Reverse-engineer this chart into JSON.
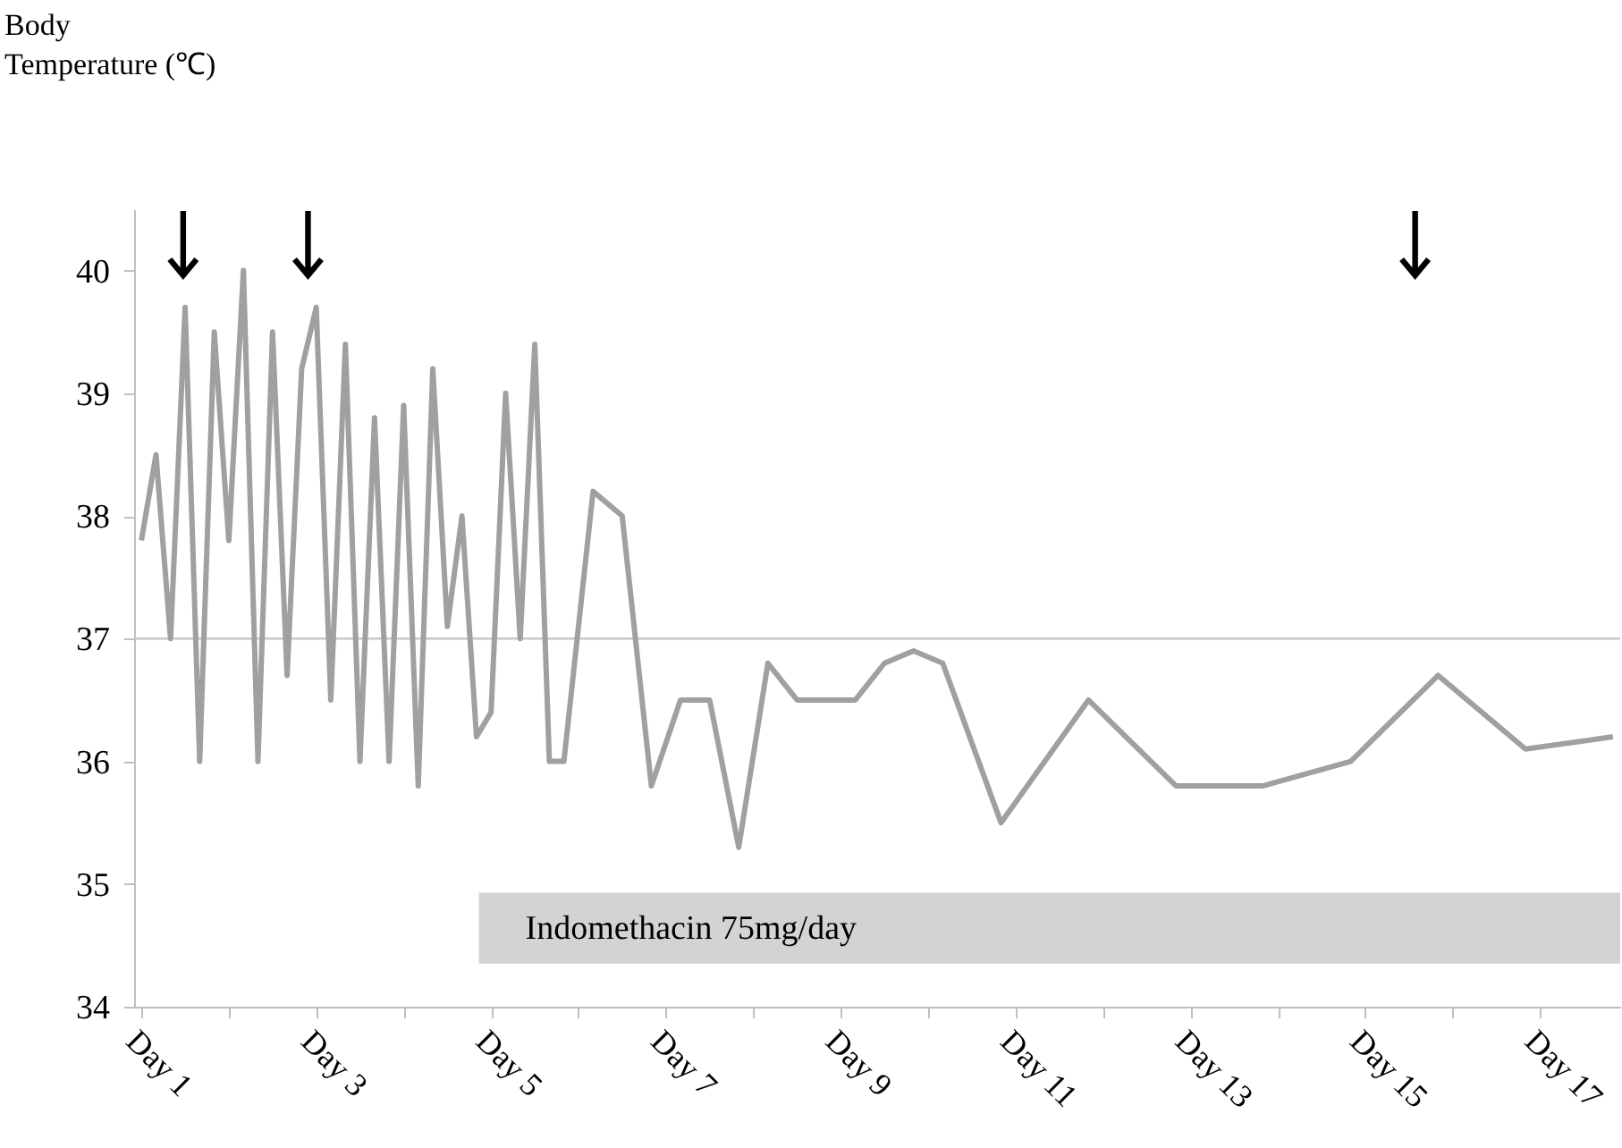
{
  "chart_data": {
    "type": "line",
    "ylabel": "Body Temperature (℃)",
    "categories": [
      "Day 1",
      null,
      null,
      null,
      null,
      null,
      null,
      null,
      null,
      null,
      null,
      null,
      "Day 3",
      null,
      null,
      null,
      null,
      null,
      null,
      null,
      null,
      null,
      null,
      null,
      "Day 5",
      null,
      null,
      null,
      null,
      null,
      null,
      null,
      null,
      null,
      null,
      null,
      "Day 7",
      null,
      null,
      null,
      null,
      null,
      null,
      null,
      null,
      null,
      null,
      null,
      "Day 9",
      null,
      null,
      null,
      null,
      null,
      null,
      null,
      null,
      null,
      null,
      null,
      "Day 11",
      null,
      null,
      null,
      null,
      null,
      null,
      null,
      null,
      null,
      null,
      null,
      "Day 13",
      null,
      null,
      null,
      null,
      null,
      null,
      null,
      null,
      null,
      null,
      null,
      "Day 15",
      null,
      null,
      null,
      null,
      null,
      null,
      null,
      null,
      null,
      null,
      null,
      "Day 17",
      null,
      null,
      null,
      null,
      null
    ],
    "series": [
      {
        "color": "#a0a0a0",
        "values": [
          37.8,
          38.5,
          37.0,
          39.7,
          36.0,
          39.5,
          37.8,
          40.0,
          36.0,
          39.5,
          36.7,
          39.2,
          39.7,
          36.5,
          39.4,
          36.0,
          38.8,
          36.0,
          38.9,
          35.8,
          39.2,
          37.1,
          38.0,
          36.2,
          36.4,
          39.0,
          37.0,
          39.4,
          36.0,
          36.0,
          null,
          38.2,
          null,
          38.0,
          null,
          35.8,
          null,
          36.5,
          null,
          36.5,
          null,
          35.3,
          null,
          36.8,
          null,
          36.5,
          null,
          36.5,
          null,
          36.5,
          null,
          36.8,
          null,
          36.9,
          null,
          36.8,
          null,
          null,
          null,
          35.5,
          null,
          null,
          null,
          null,
          null,
          36.5,
          null,
          null,
          null,
          null,
          null,
          35.8,
          null,
          null,
          null,
          null,
          null,
          35.8,
          null,
          null,
          null,
          null,
          null,
          36.0,
          null,
          null,
          null,
          null,
          null,
          36.7,
          null,
          null,
          null,
          null,
          null,
          36.1,
          null,
          null,
          null,
          null,
          null,
          36.2
        ]
      }
    ],
    "ylim": [
      34,
      40.5
    ],
    "yticks": [
      34,
      35,
      36,
      37,
      38,
      39,
      40
    ],
    "ref_lines": [
      {
        "axis": "y",
        "value": 37,
        "color": "#c8c8c8"
      }
    ],
    "annotations": [
      "Indomethacin 75mg/day"
    ],
    "grid": false,
    "marker": "none",
    "line_style": "solid"
  }
}
